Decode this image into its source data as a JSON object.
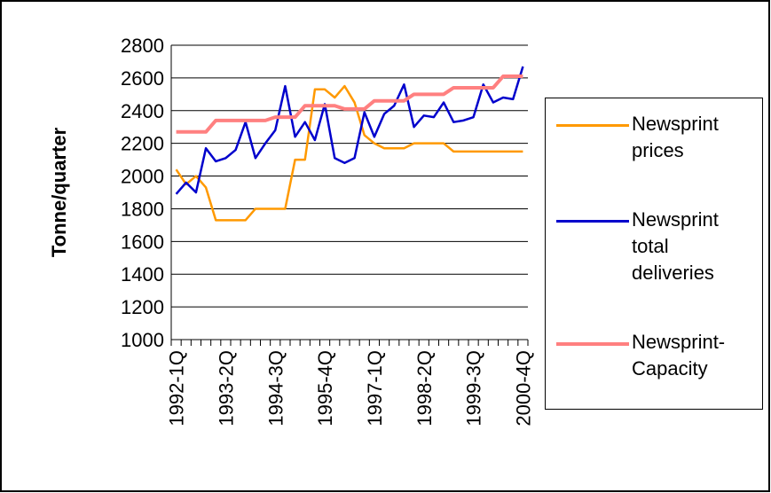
{
  "chart_data": {
    "type": "line",
    "y_label": "Tonne/quarter",
    "categories": [
      "1992-1Q",
      null,
      null,
      null,
      null,
      "1993-2Q",
      null,
      null,
      null,
      null,
      "1994-3Q",
      null,
      null,
      null,
      null,
      "1995-4Q",
      null,
      null,
      null,
      null,
      "1997-1Q",
      null,
      null,
      null,
      null,
      "1998-2Q",
      null,
      null,
      null,
      null,
      "1999-3Q",
      null,
      null,
      null,
      null,
      "2000-4Q"
    ],
    "series": [
      {
        "name": "Newsprint prices",
        "color": "#ff9900",
        "values": [
          2040,
          1950,
          2000,
          1930,
          1730,
          1730,
          1730,
          1730,
          1800,
          1800,
          1800,
          1800,
          2100,
          2100,
          2530,
          2530,
          2480,
          2550,
          2450,
          2250,
          2200,
          2170,
          2170,
          2170,
          2200,
          2200,
          2200,
          2200,
          2150,
          2150,
          2150,
          2150,
          2150,
          2150,
          2150,
          2150
        ]
      },
      {
        "name": "Newsprint total deliveries",
        "color": "#0000cc",
        "values": [
          1890,
          1960,
          1900,
          2170,
          2090,
          2110,
          2160,
          2330,
          2110,
          2200,
          2280,
          2550,
          2240,
          2330,
          2220,
          2440,
          2110,
          2080,
          2110,
          2390,
          2240,
          2380,
          2430,
          2560,
          2300,
          2370,
          2360,
          2450,
          2330,
          2340,
          2360,
          2560,
          2450,
          2480,
          2470,
          2670
        ]
      },
      {
        "name": "Newsprint-Capacity",
        "color": "#ff8080",
        "values": [
          2270,
          2270,
          2270,
          2270,
          2340,
          2340,
          2340,
          2340,
          2340,
          2340,
          2360,
          2360,
          2360,
          2430,
          2430,
          2430,
          2430,
          2410,
          2410,
          2410,
          2460,
          2460,
          2460,
          2460,
          2500,
          2500,
          2500,
          2500,
          2540,
          2540,
          2540,
          2540,
          2540,
          2610,
          2610,
          2610
        ]
      }
    ],
    "ylim": [
      1000,
      2800
    ],
    "yticks": [
      1000,
      1200,
      1400,
      1600,
      1800,
      2000,
      2200,
      2400,
      2600,
      2800
    ],
    "grid": true,
    "legend": "right"
  }
}
